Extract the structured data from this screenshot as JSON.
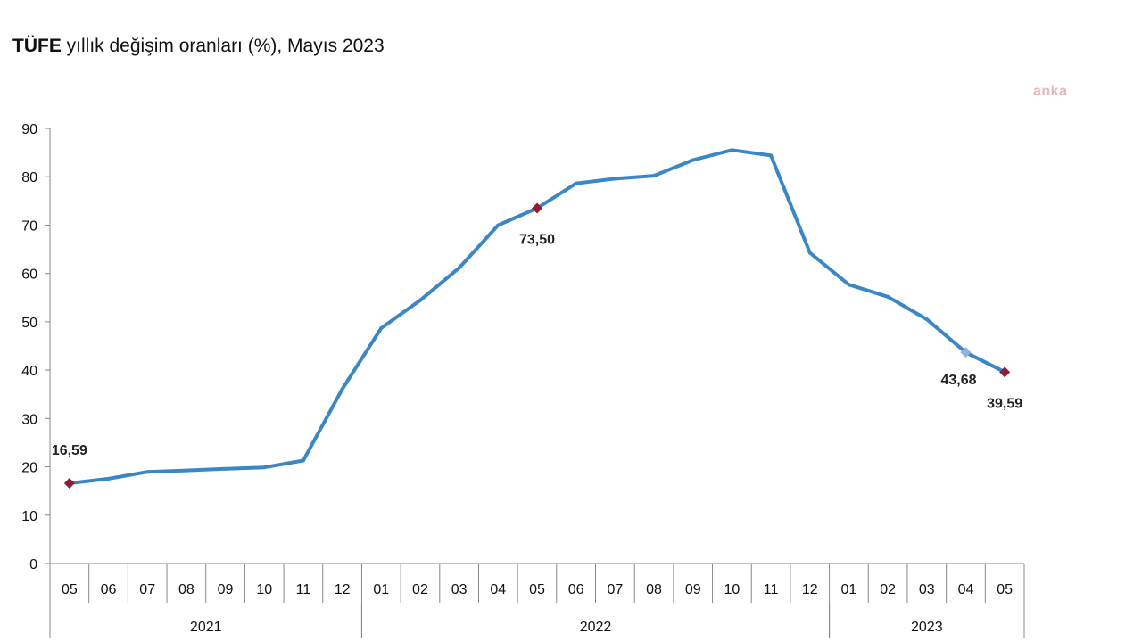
{
  "title": {
    "bold": "TÜFE",
    "rest": " yıllık değişim oranları (%), Mayıs 2023"
  },
  "watermark": "anka",
  "chart_data": {
    "type": "line",
    "title": "TÜFE yıllık değişim oranları (%), Mayıs 2023",
    "xlabel": "",
    "ylabel": "",
    "ylim": [
      0,
      90
    ],
    "yticks": [
      0,
      10,
      20,
      30,
      40,
      50,
      60,
      70,
      80,
      90
    ],
    "grid": false,
    "categories": [
      "05",
      "06",
      "07",
      "08",
      "09",
      "10",
      "11",
      "12",
      "01",
      "02",
      "03",
      "04",
      "05",
      "06",
      "07",
      "08",
      "09",
      "10",
      "11",
      "12",
      "01",
      "02",
      "03",
      "04",
      "05"
    ],
    "year_groups": [
      {
        "label": "2021",
        "start": 0,
        "end": 7
      },
      {
        "label": "2022",
        "start": 8,
        "end": 19
      },
      {
        "label": "2023",
        "start": 20,
        "end": 24
      }
    ],
    "series": [
      {
        "color": "#3b87c6",
        "values": [
          16.59,
          17.53,
          18.95,
          19.25,
          19.58,
          19.89,
          21.31,
          36.08,
          48.69,
          54.44,
          61.14,
          69.97,
          73.5,
          78.62,
          79.6,
          80.21,
          83.45,
          85.51,
          84.39,
          64.27,
          57.68,
          55.18,
          50.51,
          43.68,
          39.59
        ]
      }
    ],
    "highlighted_points": [
      {
        "index": 0,
        "label": "16,59",
        "marker_color": "#8b1f3a",
        "label_position": "above"
      },
      {
        "index": 12,
        "label": "73,50",
        "marker_color": "#8b1f3a",
        "label_position": "below"
      },
      {
        "index": 23,
        "label": "43,68",
        "marker_color": "#8fb4dc",
        "label_position": "below-left"
      },
      {
        "index": 24,
        "label": "39,59",
        "marker_color": "#8b1f3a",
        "label_position": "below"
      }
    ]
  }
}
